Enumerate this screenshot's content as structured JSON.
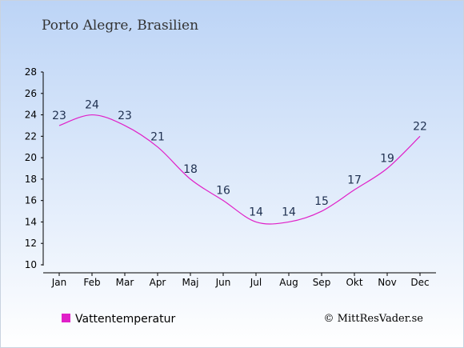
{
  "chart_data": {
    "type": "line",
    "title": "Porto Alegre, Brasilien",
    "categories": [
      "Jan",
      "Feb",
      "Mar",
      "Apr",
      "Maj",
      "Jun",
      "Jul",
      "Aug",
      "Sep",
      "Okt",
      "Nov",
      "Dec"
    ],
    "series": [
      {
        "name": "Vattentemperatur",
        "values": [
          23,
          24,
          23,
          21,
          18,
          16,
          14,
          14,
          15,
          17,
          19,
          22
        ]
      }
    ],
    "y_ticks": [
      10,
      12,
      14,
      16,
      18,
      20,
      22,
      24,
      26,
      28
    ],
    "ylim": [
      10,
      28
    ],
    "grid": false,
    "legend_position": "bottom-left",
    "line_color": "#e020c8",
    "credit": "© MittResVader.se"
  }
}
